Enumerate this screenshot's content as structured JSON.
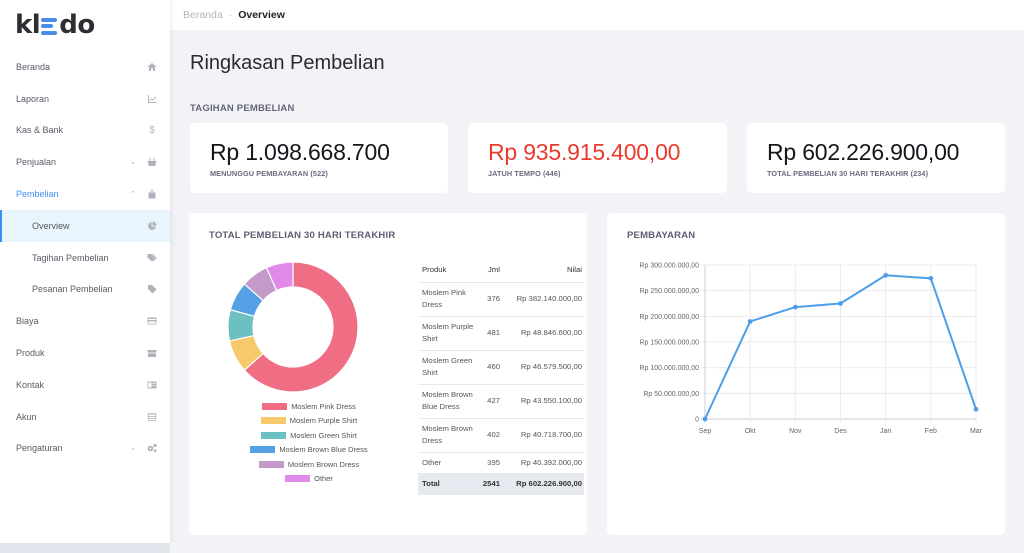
{
  "app": {
    "logo_text_left": "kl",
    "logo_text_right": "do"
  },
  "breadcrumb": {
    "parent": "Beranda",
    "separator": "·",
    "current": "Overview"
  },
  "sidebar": {
    "items": [
      {
        "label": "Beranda",
        "icon": "home-icon"
      },
      {
        "label": "Laporan",
        "icon": "chart-icon"
      },
      {
        "label": "Kas & Bank",
        "icon": "dollar-icon"
      },
      {
        "label": "Penjualan",
        "icon": "basket-icon",
        "chevron": "⌄"
      },
      {
        "label": "Pembelian",
        "icon": "bag-icon",
        "chevron": "⌃"
      },
      {
        "label": "Overview",
        "icon": "pie-icon"
      },
      {
        "label": "Tagihan Pembelian",
        "icon": "tags-icon"
      },
      {
        "label": "Pesanan Pembelian",
        "icon": "tag-icon"
      },
      {
        "label": "Biaya",
        "icon": "credit-card-icon"
      },
      {
        "label": "Produk",
        "icon": "box-icon"
      },
      {
        "label": "Kontak",
        "icon": "contact-card-icon"
      },
      {
        "label": "Akun",
        "icon": "list-icon"
      },
      {
        "label": "Pengaturan",
        "icon": "gears-icon",
        "chevron": "⌄"
      }
    ]
  },
  "page": {
    "title": "Ringkasan Pembelian",
    "section_label": "TAGIHAN PEMBELIAN"
  },
  "stats": [
    {
      "value": "Rp 1.098.668.700",
      "label": "MENUNGGU PEMBAYARAN (522)",
      "color": "#15151c"
    },
    {
      "value": "Rp 935.915.400,00",
      "label": "JATUH TEMPO (446)",
      "color": "#ea3b2e"
    },
    {
      "value": "Rp 602.226.900,00",
      "label": "TOTAL PEMBELIAN 30 HARI TERAKHIR (234)",
      "color": "#15151c"
    }
  ],
  "purchases_panel": {
    "title": "TOTAL PEMBELIAN 30 HARI TERAKHIR",
    "table": {
      "headers": [
        "Produk",
        "Jml",
        "Nilai"
      ],
      "rows": [
        {
          "name": "Moslem Pink Dress",
          "qty": "376",
          "value": "Rp 382.140.000,00"
        },
        {
          "name": "Moslem Purple Shirt",
          "qty": "481",
          "value": "Rp 48.846.600,00"
        },
        {
          "name": "Moslem Green Shirt",
          "qty": "460",
          "value": "Rp 46.579.500,00"
        },
        {
          "name": "Moslem Brown Blue Dress",
          "qty": "427",
          "value": "Rp 43.550.100,00"
        },
        {
          "name": "Moslem Brown Dress",
          "qty": "402",
          "value": "Rp 40.718.700,00"
        },
        {
          "name": "Other",
          "qty": "395",
          "value": "Rp 40.392.000,00"
        }
      ],
      "total": {
        "label": "Total",
        "qty": "2541",
        "value": "Rp 602.226.900,00"
      }
    }
  },
  "payments_panel": {
    "title": "PEMBAYARAN"
  },
  "chart_data": [
    {
      "type": "pie",
      "title": "TOTAL PEMBELIAN 30 HARI TERAKHIR",
      "donut": true,
      "legend_position": "bottom",
      "categories": [
        "Moslem Pink Dress",
        "Moslem Purple Shirt",
        "Moslem Green Shirt",
        "Moslem Brown Blue Dress",
        "Moslem Brown Dress",
        "Other"
      ],
      "values": [
        382140000,
        48846600,
        46579500,
        43550100,
        40718700,
        40392000
      ],
      "colors": [
        "#f06e84",
        "#f6ca6a",
        "#6cc0c0",
        "#56a0e6",
        "#c39ac8",
        "#e08bea"
      ]
    },
    {
      "type": "line",
      "title": "PEMBAYARAN",
      "x": [
        "Sep",
        "Okt",
        "Nov",
        "Des",
        "Jan",
        "Feb",
        "Mar"
      ],
      "series": [
        {
          "name": "Pembayaran",
          "values": [
            0,
            190000000,
            218000000,
            225000000,
            280000000,
            274000000,
            19000000
          ],
          "color": "#4f9ee8"
        }
      ],
      "yticks": [
        "0",
        "Rp 50.000.000,00",
        "Rp 100.000.000,00",
        "Rp 150.000.000,00",
        "Rp 200.000.000,00",
        "Rp 250.000.000,00",
        "Rp 300.000.000,00"
      ],
      "ylim": [
        0,
        300000000
      ],
      "grid": true,
      "xlabel": "",
      "ylabel": ""
    }
  ]
}
